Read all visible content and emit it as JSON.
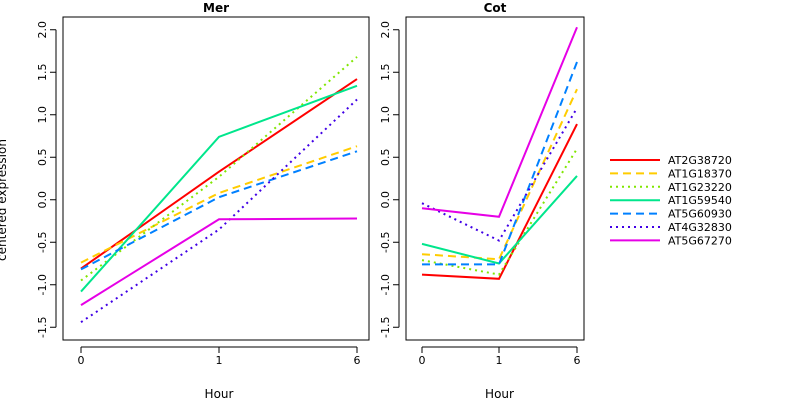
{
  "chart_data": {
    "type": "line",
    "ylabel": "centered expression",
    "ylim": [
      -1.5,
      2.0
    ],
    "yticks": [
      "-1.5",
      "-1.0",
      "-0.5",
      "0.0",
      "0.5",
      "1.0",
      "1.5",
      "2.0"
    ],
    "legend_position": "right",
    "panels": [
      {
        "title": "Mer",
        "xlabel": "Hour",
        "x": [
          "0",
          "1",
          "6"
        ],
        "series": [
          {
            "name": "AT2G38720",
            "color": "#ff0000",
            "dash": "solid",
            "values": [
              -0.81,
              0.33,
              1.42
            ]
          },
          {
            "name": "AT1G18370",
            "color": "#ffcc00",
            "dash": "dashed",
            "values": [
              -0.74,
              0.08,
              0.63
            ]
          },
          {
            "name": "AT1G23220",
            "color": "#80e600",
            "dash": "dotted",
            "values": [
              -0.95,
              0.27,
              1.68
            ]
          },
          {
            "name": "AT1G59540",
            "color": "#00e68c",
            "dash": "solid",
            "values": [
              -1.08,
              0.74,
              1.34
            ]
          },
          {
            "name": "AT5G60930",
            "color": "#0080ff",
            "dash": "dashed",
            "values": [
              -0.82,
              0.03,
              0.57
            ]
          },
          {
            "name": "AT4G32830",
            "color": "#4000e6",
            "dash": "dotted",
            "values": [
              -1.44,
              -0.35,
              1.18
            ]
          },
          {
            "name": "AT5G67270",
            "color": "#e600e6",
            "dash": "solid",
            "values": [
              -1.24,
              -0.23,
              -0.22
            ]
          }
        ]
      },
      {
        "title": "Cot",
        "xlabel": "Hour",
        "x": [
          "0",
          "1",
          "6"
        ],
        "series": [
          {
            "name": "AT2G38720",
            "color": "#ff0000",
            "dash": "solid",
            "values": [
              -0.88,
              -0.93,
              0.89
            ]
          },
          {
            "name": "AT1G18370",
            "color": "#ffcc00",
            "dash": "dashed",
            "values": [
              -0.64,
              -0.7,
              1.3
            ]
          },
          {
            "name": "AT1G23220",
            "color": "#80e600",
            "dash": "dotted",
            "values": [
              -0.71,
              -0.88,
              0.6
            ]
          },
          {
            "name": "AT1G59540",
            "color": "#00e68c",
            "dash": "solid",
            "values": [
              -0.52,
              -0.75,
              0.28
            ]
          },
          {
            "name": "AT5G60930",
            "color": "#0080ff",
            "dash": "dashed",
            "values": [
              -0.76,
              -0.76,
              1.62
            ]
          },
          {
            "name": "AT4G32830",
            "color": "#4000e6",
            "dash": "dotted",
            "values": [
              -0.04,
              -0.48,
              1.08
            ]
          },
          {
            "name": "AT5G67270",
            "color": "#e600e6",
            "dash": "solid",
            "values": [
              -0.1,
              -0.2,
              2.03
            ]
          }
        ]
      }
    ]
  }
}
